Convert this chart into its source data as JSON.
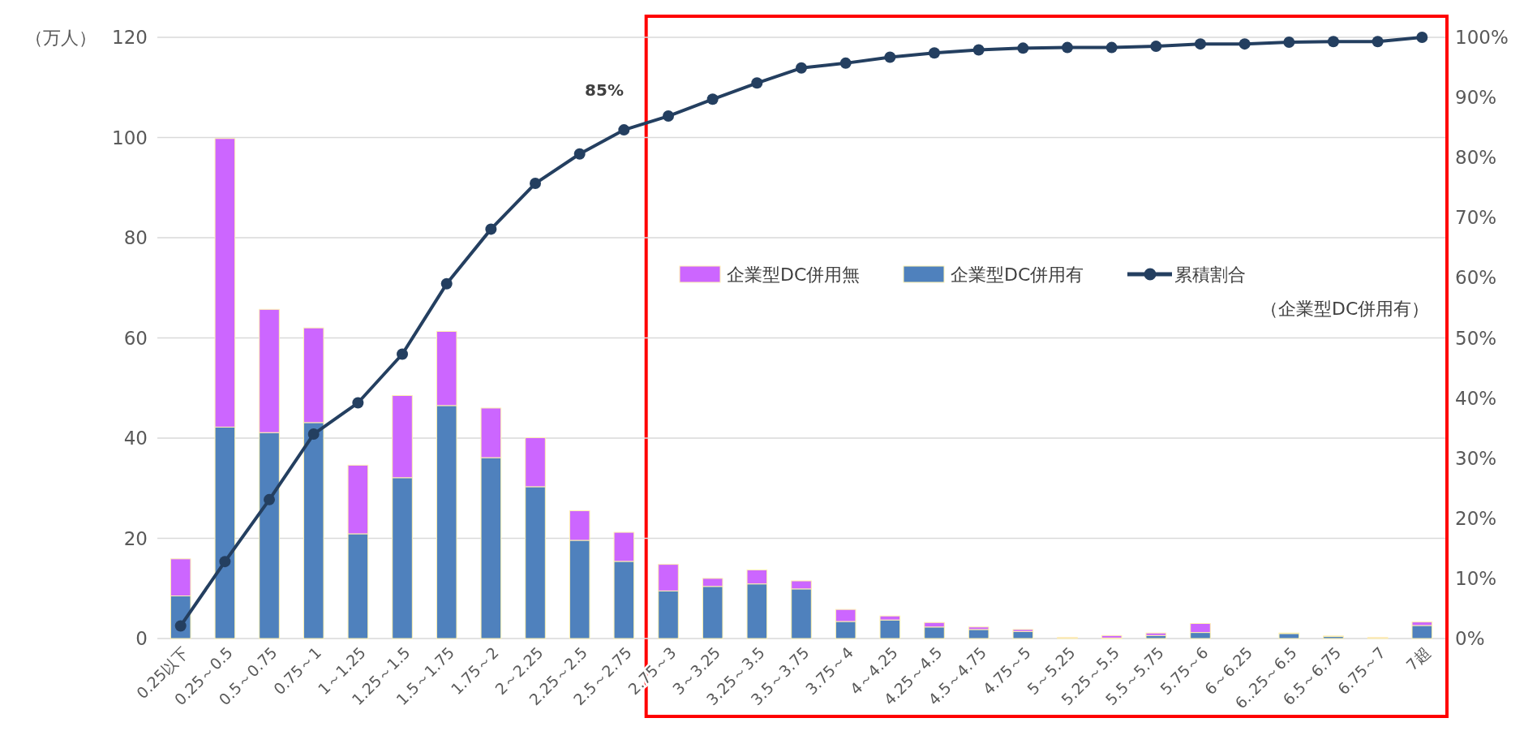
{
  "chart_data": {
    "type": "bar",
    "stacked": true,
    "ylabel": "（万人）",
    "categories": [
      "0.25以下",
      "0.25～0.5",
      "0.5～0.75",
      "0.75～1",
      "1～1.25",
      "1.25～1.5",
      "1.5～1.75",
      "1.75～2",
      "2～2.25",
      "2.25～2.5",
      "2.5～2.75",
      "2.75～3",
      "3～3.25",
      "3.25～3.5",
      "3.5～3.75",
      "3.75～4",
      "4～4.25",
      "4.25～4.5",
      "4.5～4.75",
      "4.75～5",
      "5～5.25",
      "5.25～5.5",
      "5.5～5.75",
      "5.75～6",
      "6～6.25",
      "6..25～6.5",
      "6.5～6.75",
      "6.75～7",
      "7超"
    ],
    "series": [
      {
        "name": "企業型DC併用有",
        "color": "#4f81bd",
        "values": [
          8.5,
          42.2,
          41.1,
          43.1,
          20.9,
          32.1,
          46.5,
          36.1,
          30.3,
          19.6,
          15.4,
          9.5,
          10.4,
          10.9,
          9.9,
          3.4,
          3.7,
          2.3,
          1.8,
          1.4,
          0.1,
          0.1,
          0.6,
          1.2,
          0,
          1.0,
          0.4,
          0.1,
          2.6
        ]
      },
      {
        "name": "企業型DC併用無",
        "color": "#cc66ff",
        "values": [
          7.4,
          57.6,
          24.6,
          18.9,
          13.7,
          16.4,
          14.8,
          9.9,
          9.8,
          5.9,
          5.8,
          5.3,
          1.6,
          2.8,
          1.6,
          2.4,
          0.8,
          0.9,
          0.5,
          0.4,
          0.1,
          0.5,
          0.5,
          1.8,
          0,
          0.1,
          0.1,
          0.1,
          0.7
        ]
      },
      {
        "name": "累積割合（企業型DC併用有）",
        "type": "line",
        "axis": "y2",
        "color": "#243f60",
        "marker": "circle",
        "line_style": "solid",
        "values": [
          2.1,
          12.8,
          23.1,
          34.0,
          39.2,
          47.3,
          59.0,
          68.1,
          75.7,
          80.6,
          84.6,
          86.9,
          89.7,
          92.4,
          94.9,
          95.7,
          96.7,
          97.4,
          97.9,
          98.2,
          98.3,
          98.3,
          98.5,
          98.9,
          98.9,
          99.2,
          99.3,
          99.3,
          100
        ]
      }
    ],
    "ylim": [
      0,
      120
    ],
    "yticks": [
      0,
      20,
      40,
      60,
      80,
      100,
      120
    ],
    "y2lim": [
      0,
      100
    ],
    "y2ticks": [
      {
        "value": 0,
        "label": "0%"
      },
      {
        "value": 10,
        "label": "10%"
      },
      {
        "value": 20,
        "label": "20%"
      },
      {
        "value": 30,
        "label": "30%"
      },
      {
        "value": 40,
        "label": "40%"
      },
      {
        "value": 50,
        "label": "50%"
      },
      {
        "value": 60,
        "label": "60%"
      },
      {
        "value": 70,
        "label": "70%"
      },
      {
        "value": 80,
        "label": "80%"
      },
      {
        "value": 90,
        "label": "90%"
      },
      {
        "value": 100,
        "label": "100%"
      }
    ],
    "grid": "y",
    "legend": "right",
    "annotations": [
      "85%"
    ]
  }
}
